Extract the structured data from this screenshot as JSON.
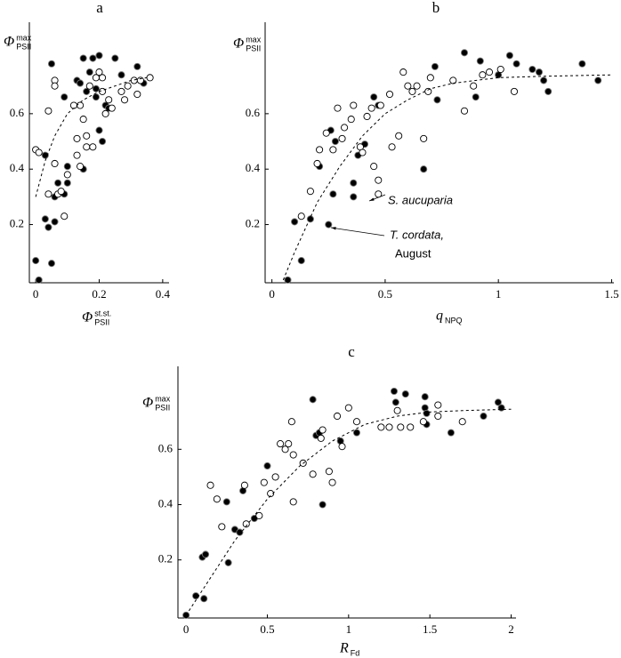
{
  "chart_data": [
    {
      "type": "scatter",
      "title": "a",
      "x_label": {
        "symbol": "Φ",
        "sup": "st.st.",
        "sub": "PSII"
      },
      "y_label": {
        "symbol": "Φ",
        "sup": "max",
        "sub": "PSII"
      },
      "xlim": [
        -0.02,
        0.42
      ],
      "ylim": [
        -0.01,
        0.93
      ],
      "xticks": [
        0,
        0.2,
        0.4
      ],
      "yticks": [
        0.2,
        0.4,
        0.6
      ],
      "series": [
        {
          "marker": "filled",
          "color": "#000000",
          "x": [
            0,
            0.01,
            0.03,
            0.03,
            0.04,
            0.05,
            0.05,
            0.06,
            0.06,
            0.07,
            0.09,
            0.09,
            0.1,
            0.1,
            0.13,
            0.14,
            0.15,
            0.15,
            0.16,
            0.17,
            0.18,
            0.19,
            0.19,
            0.2,
            0.2,
            0.21,
            0.22,
            0.23,
            0.25,
            0.27,
            0.32,
            0.34
          ],
          "values": [
            0.07,
            0.0,
            0.45,
            0.22,
            0.19,
            0.78,
            0.06,
            0.3,
            0.21,
            0.35,
            0.31,
            0.66,
            0.41,
            0.35,
            0.72,
            0.71,
            0.4,
            0.8,
            0.68,
            0.75,
            0.8,
            0.69,
            0.66,
            0.54,
            0.81,
            0.5,
            0.63,
            0.62,
            0.8,
            0.74,
            0.77,
            0.71
          ]
        },
        {
          "marker": "open",
          "color": "#000000",
          "x": [
            0,
            0.01,
            0.04,
            0.04,
            0.06,
            0.06,
            0.06,
            0.07,
            0.08,
            0.09,
            0.1,
            0.12,
            0.13,
            0.13,
            0.14,
            0.14,
            0.15,
            0.16,
            0.16,
            0.17,
            0.18,
            0.19,
            0.2,
            0.21,
            0.21,
            0.22,
            0.23,
            0.24,
            0.27,
            0.28,
            0.29,
            0.31,
            0.32,
            0.33,
            0.36
          ],
          "values": [
            0.47,
            0.46,
            0.31,
            0.61,
            0.72,
            0.7,
            0.42,
            0.31,
            0.32,
            0.23,
            0.38,
            0.63,
            0.45,
            0.51,
            0.41,
            0.63,
            0.58,
            0.52,
            0.48,
            0.7,
            0.48,
            0.73,
            0.75,
            0.73,
            0.68,
            0.6,
            0.65,
            0.62,
            0.68,
            0.65,
            0.7,
            0.72,
            0.67,
            0.72,
            0.73
          ]
        },
        {
          "marker": "dashed-line",
          "color": "#000000",
          "x": [
            0,
            0.03,
            0.06,
            0.1,
            0.15,
            0.2,
            0.25,
            0.3,
            0.35
          ],
          "values": [
            0.3,
            0.43,
            0.52,
            0.6,
            0.65,
            0.68,
            0.7,
            0.72,
            0.73
          ]
        }
      ]
    },
    {
      "type": "scatter",
      "title": "b",
      "x_label": {
        "symbol": "q",
        "sub": "NPQ"
      },
      "y_label": {
        "symbol": "Φ",
        "sup": "max",
        "sub": "PSII"
      },
      "xlim": [
        -0.03,
        1.51
      ],
      "ylim": [
        -0.01,
        0.93
      ],
      "xticks": [
        0,
        0.5,
        1.0,
        1.5
      ],
      "yticks": [
        0.2,
        0.4,
        0.6
      ],
      "annotations": [
        "S. aucuparia",
        "T. cordata,",
        "August"
      ],
      "series": [
        {
          "marker": "filled",
          "color": "#000000",
          "x": [
            0.07,
            0.1,
            0.13,
            0.17,
            0.21,
            0.25,
            0.26,
            0.27,
            0.28,
            0.36,
            0.36,
            0.38,
            0.41,
            0.45,
            0.47,
            0.67,
            0.72,
            0.73,
            0.85,
            0.9,
            0.92,
            1.0,
            1.05,
            1.08,
            1.15,
            1.18,
            1.2,
            1.22,
            1.37,
            1.44
          ],
          "values": [
            0.0,
            0.21,
            0.07,
            0.22,
            0.41,
            0.2,
            0.54,
            0.31,
            0.5,
            0.35,
            0.3,
            0.45,
            0.49,
            0.66,
            0.63,
            0.4,
            0.77,
            0.65,
            0.82,
            0.66,
            0.79,
            0.74,
            0.81,
            0.78,
            0.76,
            0.75,
            0.72,
            0.68,
            0.78,
            0.72
          ]
        },
        {
          "marker": "open",
          "color": "#000000",
          "x": [
            0.13,
            0.17,
            0.2,
            0.21,
            0.24,
            0.27,
            0.29,
            0.31,
            0.32,
            0.35,
            0.36,
            0.39,
            0.4,
            0.42,
            0.44,
            0.45,
            0.47,
            0.47,
            0.48,
            0.52,
            0.53,
            0.56,
            0.58,
            0.6,
            0.62,
            0.64,
            0.67,
            0.69,
            0.7,
            0.8,
            0.85,
            0.89,
            0.93,
            0.96,
            1.01,
            1.07
          ],
          "values": [
            0.23,
            0.32,
            0.42,
            0.47,
            0.53,
            0.47,
            0.62,
            0.51,
            0.55,
            0.58,
            0.63,
            0.48,
            0.46,
            0.59,
            0.62,
            0.41,
            0.31,
            0.36,
            0.63,
            0.67,
            0.48,
            0.52,
            0.75,
            0.7,
            0.68,
            0.7,
            0.51,
            0.68,
            0.73,
            0.72,
            0.61,
            0.7,
            0.74,
            0.75,
            0.76,
            0.68
          ]
        },
        {
          "marker": "dashed-line",
          "color": "#000000",
          "x": [
            0.05,
            0.1,
            0.2,
            0.3,
            0.4,
            0.5,
            0.6,
            0.7,
            0.8,
            0.9,
            1.0,
            1.2,
            1.5
          ],
          "values": [
            0,
            0.1,
            0.28,
            0.41,
            0.52,
            0.6,
            0.65,
            0.69,
            0.71,
            0.72,
            0.73,
            0.735,
            0.74
          ]
        }
      ]
    },
    {
      "type": "scatter",
      "title": "c",
      "x_label": {
        "symbol": "R",
        "sub": "Fd"
      },
      "y_label": {
        "symbol": "Φ",
        "sup": "max",
        "sub": "PSII"
      },
      "xlim": [
        -0.05,
        2.03
      ],
      "ylim": [
        -0.01,
        0.9
      ],
      "xticks": [
        0,
        0.5,
        1.0,
        1.5,
        2.0
      ],
      "yticks": [
        0.2,
        0.4,
        0.6
      ],
      "series": [
        {
          "marker": "filled",
          "color": "#000000",
          "x": [
            0,
            0.06,
            0.1,
            0.12,
            0.11,
            0.25,
            0.26,
            0.3,
            0.33,
            0.35,
            0.42,
            0.5,
            0.78,
            0.8,
            0.82,
            0.84,
            0.95,
            1.05,
            1.28,
            1.29,
            1.35,
            1.47,
            1.47,
            1.48,
            1.48,
            1.63,
            1.83,
            1.92,
            1.94
          ],
          "values": [
            0,
            0.07,
            0.21,
            0.22,
            0.06,
            0.41,
            0.19,
            0.31,
            0.3,
            0.45,
            0.35,
            0.54,
            0.78,
            0.65,
            0.66,
            0.4,
            0.63,
            0.66,
            0.81,
            0.77,
            0.8,
            0.75,
            0.79,
            0.69,
            0.73,
            0.66,
            0.72,
            0.77,
            0.75
          ]
        },
        {
          "marker": "open",
          "color": "#000000",
          "x": [
            0.15,
            0.19,
            0.22,
            0.36,
            0.37,
            0.45,
            0.48,
            0.52,
            0.55,
            0.58,
            0.61,
            0.63,
            0.65,
            0.66,
            0.66,
            0.72,
            0.78,
            0.83,
            0.84,
            0.88,
            0.9,
            0.93,
            0.96,
            1.0,
            1.05,
            1.2,
            1.25,
            1.3,
            1.32,
            1.38,
            1.46,
            1.55,
            1.55,
            1.7
          ],
          "values": [
            0.47,
            0.42,
            0.32,
            0.47,
            0.33,
            0.36,
            0.48,
            0.44,
            0.5,
            0.62,
            0.6,
            0.62,
            0.7,
            0.58,
            0.41,
            0.55,
            0.51,
            0.64,
            0.67,
            0.52,
            0.48,
            0.72,
            0.61,
            0.75,
            0.7,
            0.68,
            0.68,
            0.74,
            0.68,
            0.68,
            0.7,
            0.76,
            0.72,
            0.7
          ]
        },
        {
          "marker": "dashed-line",
          "color": "#000000",
          "x": [
            0,
            0.1,
            0.2,
            0.3,
            0.5,
            0.7,
            0.9,
            1.1,
            1.3,
            1.5,
            1.7,
            2.0
          ],
          "values": [
            0,
            0.09,
            0.18,
            0.27,
            0.42,
            0.54,
            0.63,
            0.69,
            0.72,
            0.735,
            0.74,
            0.745
          ]
        }
      ]
    }
  ]
}
